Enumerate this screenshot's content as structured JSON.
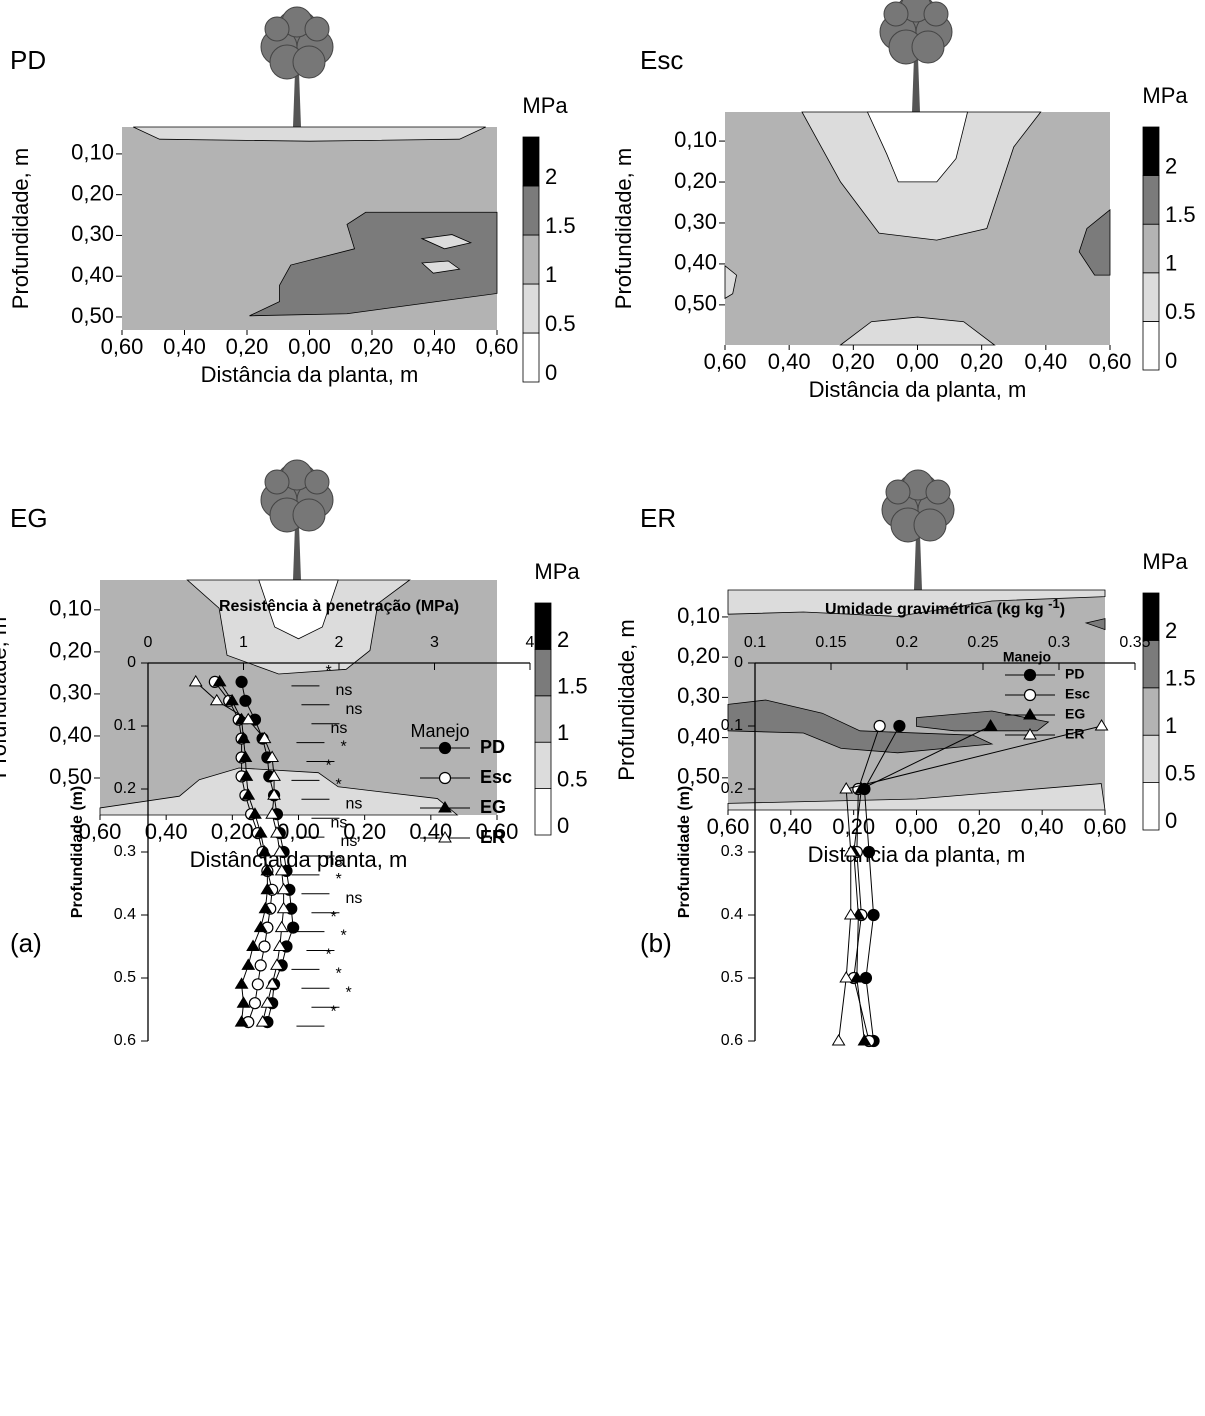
{
  "chart_data": [
    {
      "type": "contour",
      "label": "PD",
      "xlabel": "Distância da planta, m",
      "ylabel": "Profundidade, m",
      "colorbar_title": "MPa",
      "xlim": [
        -0.6,
        0.6
      ],
      "xticks": [
        {
          "value": -0.6,
          "label": "0,60"
        },
        {
          "value": -0.4,
          "label": "0,40"
        },
        {
          "value": -0.2,
          "label": "0,20"
        },
        {
          "value": 0,
          "label": "0,00"
        },
        {
          "value": 0.2,
          "label": "0,20"
        },
        {
          "value": 0.4,
          "label": "0,40"
        },
        {
          "value": 0.6,
          "label": "0,60"
        }
      ],
      "ylim": [
        0.034,
        0.532
      ],
      "yticks": [
        {
          "value": 0.1,
          "label": "0,10"
        },
        {
          "value": 0.2,
          "label": "0,20"
        },
        {
          "value": 0.3,
          "label": "0,30"
        },
        {
          "value": 0.4,
          "label": "0,40"
        },
        {
          "value": 0.5,
          "label": "0,50"
        }
      ],
      "levels": [
        0,
        0.5,
        1,
        1.5,
        2
      ],
      "colors": [
        "#ffffff",
        "#dcdcdc",
        "#b3b3b3",
        "#7b7b7b",
        "#000000"
      ]
    },
    {
      "type": "contour",
      "label": "Esc",
      "xlabel": "Distância da planta, m",
      "ylabel": "Profundidade, m",
      "colorbar_title": "MPa",
      "xlim": [
        -0.6,
        0.6
      ],
      "xticks": [
        {
          "value": -0.6,
          "label": "0,60"
        },
        {
          "value": -0.4,
          "label": "0,40"
        },
        {
          "value": -0.2,
          "label": "0,20"
        },
        {
          "value": 0,
          "label": "0,00"
        },
        {
          "value": 0.2,
          "label": "0,20"
        },
        {
          "value": 0.4,
          "label": "0,40"
        },
        {
          "value": 0.6,
          "label": "0,60"
        }
      ],
      "ylim": [
        0.029,
        0.598
      ],
      "yticks": [
        {
          "value": 0.1,
          "label": "0,10"
        },
        {
          "value": 0.2,
          "label": "0,20"
        },
        {
          "value": 0.3,
          "label": "0,30"
        },
        {
          "value": 0.4,
          "label": "0,40"
        },
        {
          "value": 0.5,
          "label": "0,50"
        }
      ],
      "levels": [
        0,
        0.5,
        1,
        1.5,
        2
      ],
      "colors": [
        "#ffffff",
        "#dcdcdc",
        "#b3b3b3",
        "#7b7b7b",
        "#000000"
      ]
    },
    {
      "type": "contour",
      "label": "EG",
      "xlabel": "Distância da planta, m",
      "ylabel": "Profundidade, m",
      "colorbar_title": "MPa",
      "xlim": [
        -0.6,
        0.6
      ],
      "xticks": [
        {
          "value": -0.6,
          "label": "0,60"
        },
        {
          "value": -0.4,
          "label": "0,40"
        },
        {
          "value": -0.2,
          "label": "0,20"
        },
        {
          "value": 0,
          "label": "0,00"
        },
        {
          "value": 0.2,
          "label": "0,20"
        },
        {
          "value": 0.4,
          "label": "0,40"
        },
        {
          "value": 0.6,
          "label": "0,60"
        }
      ],
      "ylim": [
        0.029,
        0.588
      ],
      "yticks": [
        {
          "value": 0.1,
          "label": "0,10"
        },
        {
          "value": 0.2,
          "label": "0,20"
        },
        {
          "value": 0.3,
          "label": "0,30"
        },
        {
          "value": 0.4,
          "label": "0,40"
        },
        {
          "value": 0.5,
          "label": "0,50"
        }
      ],
      "levels": [
        0,
        0.5,
        1,
        1.5,
        2
      ],
      "colors": [
        "#ffffff",
        "#dcdcdc",
        "#b3b3b3",
        "#7b7b7b",
        "#000000"
      ]
    },
    {
      "type": "contour",
      "label": "ER",
      "xlabel": "Distância da planta, m",
      "ylabel": "Profundidade, m",
      "colorbar_title": "MPa",
      "xlim": [
        -0.6,
        0.6
      ],
      "xticks": [
        {
          "value": -0.6,
          "label": "0,60"
        },
        {
          "value": -0.4,
          "label": "0,40"
        },
        {
          "value": -0.2,
          "label": "0,20"
        },
        {
          "value": 0,
          "label": "0,00"
        },
        {
          "value": 0.2,
          "label": "0,20"
        },
        {
          "value": 0.4,
          "label": "0,40"
        },
        {
          "value": 0.6,
          "label": "0,60"
        }
      ],
      "ylim": [
        0.033,
        0.58
      ],
      "yticks": [
        {
          "value": 0.1,
          "label": "0,10"
        },
        {
          "value": 0.2,
          "label": "0,20"
        },
        {
          "value": 0.3,
          "label": "0,30"
        },
        {
          "value": 0.4,
          "label": "0,40"
        },
        {
          "value": 0.5,
          "label": "0,50"
        }
      ],
      "levels": [
        0,
        0.5,
        1,
        1.5,
        2
      ],
      "colors": [
        "#ffffff",
        "#dcdcdc",
        "#b3b3b3",
        "#7b7b7b",
        "#000000"
      ]
    },
    {
      "type": "line",
      "label": "(a)",
      "xlabel": [
        "Resistência à penetração (MPa)"
      ],
      "ylabel": "Profundidade (m)",
      "legend_title": "Manejo",
      "xlim": [
        0,
        4
      ],
      "xticks": [
        0,
        1,
        2,
        3,
        4
      ],
      "ylim": [
        0,
        0.6
      ],
      "yticks": [
        0,
        0.1,
        0.2,
        0.3,
        0.4,
        0.5,
        0.6
      ],
      "y": [
        0.03,
        0.06,
        0.09,
        0.12,
        0.15,
        0.18,
        0.21,
        0.24,
        0.27,
        0.3,
        0.33,
        0.36,
        0.39,
        0.42,
        0.45,
        0.48,
        0.51,
        0.54,
        0.57
      ],
      "significance": [
        "*",
        "ns",
        "ns",
        "ns",
        "*",
        "*",
        "*",
        "ns",
        "ns",
        "ns",
        "ns",
        "*",
        "ns",
        "*",
        "*",
        "*",
        "*",
        "*",
        "*"
      ],
      "series": [
        {
          "name": "PD",
          "color": "#000000",
          "marker": "circle",
          "filled": true,
          "values": [
            0.98,
            1.02,
            1.12,
            1.2,
            1.25,
            1.27,
            1.32,
            1.35,
            1.38,
            1.42,
            1.45,
            1.48,
            1.5,
            1.52,
            1.45,
            1.4,
            1.32,
            1.3,
            1.25
          ]
        },
        {
          "name": "Esc",
          "color": "#000000",
          "marker": "circle",
          "filled": false,
          "values": [
            0.7,
            0.85,
            0.95,
            0.98,
            0.98,
            0.98,
            1.02,
            1.08,
            1.15,
            1.2,
            1.25,
            1.3,
            1.28,
            1.25,
            1.22,
            1.18,
            1.15,
            1.12,
            1.05
          ]
        },
        {
          "name": "EG",
          "color": "#000000",
          "marker": "triangle",
          "filled": true,
          "values": [
            0.75,
            0.88,
            0.98,
            1.0,
            1.02,
            1.03,
            1.05,
            1.12,
            1.18,
            1.22,
            1.25,
            1.25,
            1.23,
            1.18,
            1.1,
            1.05,
            0.98,
            1.0,
            0.98
          ]
        },
        {
          "name": "ER",
          "color": "#000000",
          "marker": "triangle",
          "filled": false,
          "values": [
            0.5,
            0.72,
            1.05,
            1.22,
            1.3,
            1.32,
            1.32,
            1.3,
            1.35,
            1.38,
            1.4,
            1.42,
            1.42,
            1.4,
            1.38,
            1.35,
            1.3,
            1.25,
            1.2
          ]
        }
      ]
    },
    {
      "type": "line",
      "label": "(b)",
      "xlabel": [
        "Umidade gravimétrica (kg kg ",
        "-1",
        ")"
      ],
      "ylabel": "Profundidade (m)",
      "legend_title": "Manejo",
      "xlim": [
        0.1,
        0.35
      ],
      "xticks": [
        0.1,
        0.15,
        0.2,
        0.25,
        0.3,
        0.35
      ],
      "ylim": [
        0,
        0.6
      ],
      "yticks": [
        0,
        0.1,
        0.2,
        0.3,
        0.4,
        0.5,
        0.6
      ],
      "y": [
        0.1,
        0.2,
        0.3,
        0.4,
        0.5,
        0.6
      ],
      "series": [
        {
          "name": "PD",
          "color": "#000000",
          "marker": "circle",
          "filled": true,
          "values": [
            0.195,
            0.172,
            0.175,
            0.178,
            0.173,
            0.178
          ]
        },
        {
          "name": "Esc",
          "color": "#000000",
          "marker": "circle",
          "filled": false,
          "values": [
            0.182,
            0.168,
            0.167,
            0.17,
            0.165,
            0.175
          ]
        },
        {
          "name": "EG",
          "color": "#000000",
          "marker": "triangle",
          "filled": true,
          "values": [
            0.255,
            0.17,
            0.165,
            0.168,
            0.167,
            0.172
          ]
        },
        {
          "name": "ER",
          "color": "#000000",
          "marker": "triangle",
          "filled": false,
          "values": [
            0.328,
            0.16,
            0.163,
            0.163,
            0.16,
            0.155
          ]
        }
      ]
    }
  ]
}
